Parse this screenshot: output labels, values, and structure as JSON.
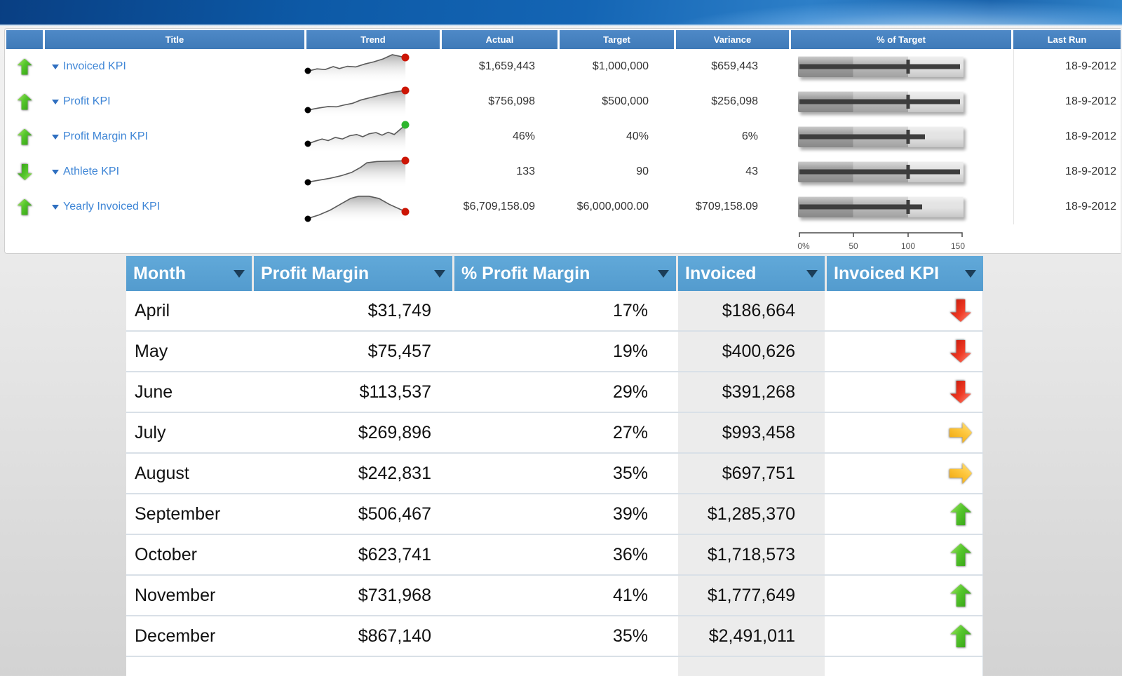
{
  "scorecard": {
    "columns": {
      "status": "",
      "title": "Title",
      "trend": "Trend",
      "actual": "Actual",
      "target": "Target",
      "variance": "Variance",
      "pct_of_target": "% of Target",
      "last_run": "Last Run"
    },
    "axis_labels": [
      "0%",
      "50",
      "100",
      "150"
    ],
    "rows": [
      {
        "status_arrow": "up-green",
        "title": "Invoiced KPI",
        "actual": "$1,659,443",
        "target": "$1,000,000",
        "variance": "$659,443",
        "last_run": "18-9-2012",
        "trend": {
          "end_color": "#cc1504",
          "points": [
            [
              0,
              64
            ],
            [
              9,
              57
            ],
            [
              17,
              59
            ],
            [
              25,
              50
            ],
            [
              31,
              56
            ],
            [
              39,
              49
            ],
            [
              47,
              51
            ],
            [
              56,
              42
            ],
            [
              65,
              35
            ],
            [
              74,
              26
            ],
            [
              83,
              13
            ],
            [
              89,
              17
            ],
            [
              96,
              22
            ]
          ]
        },
        "bullet": {
          "value_pct": 97,
          "target_pct": 66.6
        }
      },
      {
        "status_arrow": "up-green",
        "title": "Profit KPI",
        "actual": "$756,098",
        "target": "$500,000",
        "variance": "$256,098",
        "last_run": "18-9-2012",
        "trend": {
          "end_color": "#cc1504",
          "points": [
            [
              0,
              76
            ],
            [
              10,
              70
            ],
            [
              20,
              65
            ],
            [
              28,
              66
            ],
            [
              36,
              60
            ],
            [
              44,
              55
            ],
            [
              52,
              45
            ],
            [
              62,
              37
            ],
            [
              72,
              29
            ],
            [
              83,
              21
            ],
            [
              96,
              15
            ]
          ]
        },
        "bullet": {
          "value_pct": 97,
          "target_pct": 66.6
        }
      },
      {
        "status_arrow": "up-green",
        "title": "Profit Margin KPI",
        "actual": "46%",
        "target": "40%",
        "variance": "6%",
        "last_run": "18-9-2012",
        "trend": {
          "end_color": "#2db52d",
          "points": [
            [
              0,
              72
            ],
            [
              7,
              64
            ],
            [
              14,
              57
            ],
            [
              20,
              62
            ],
            [
              27,
              52
            ],
            [
              34,
              57
            ],
            [
              41,
              47
            ],
            [
              48,
              43
            ],
            [
              54,
              50
            ],
            [
              60,
              41
            ],
            [
              67,
              37
            ],
            [
              73,
              45
            ],
            [
              79,
              36
            ],
            [
              85,
              43
            ],
            [
              96,
              13
            ]
          ]
        },
        "bullet": {
          "value_pct": 76,
          "target_pct": 66.6
        }
      },
      {
        "status_arrow": "down-green",
        "title": "Athlete KPI",
        "actual": "133",
        "target": "90",
        "variance": "43",
        "last_run": "18-9-2012",
        "trend": {
          "end_color": "#cc1504",
          "points": [
            [
              0,
              82
            ],
            [
              11,
              76
            ],
            [
              22,
              70
            ],
            [
              33,
              62
            ],
            [
              43,
              52
            ],
            [
              52,
              36
            ],
            [
              58,
              22
            ],
            [
              68,
              18
            ],
            [
              80,
              17
            ],
            [
              96,
              16
            ]
          ]
        },
        "bullet": {
          "value_pct": 97,
          "target_pct": 66.6
        }
      },
      {
        "status_arrow": "up-green",
        "title": "Yearly Invoiced KPI",
        "actual": "$6,709,158.09",
        "target": "$6,000,000.00",
        "variance": "$709,158.09",
        "last_run": "18-9-2012",
        "trend": {
          "end_color": "#cc1504",
          "points": [
            [
              0,
              86
            ],
            [
              11,
              75
            ],
            [
              22,
              60
            ],
            [
              33,
              40
            ],
            [
              42,
              24
            ],
            [
              50,
              17
            ],
            [
              60,
              17
            ],
            [
              70,
              24
            ],
            [
              80,
              42
            ],
            [
              96,
              65
            ]
          ]
        },
        "bullet": {
          "value_pct": 74,
          "target_pct": 66.6
        }
      }
    ]
  },
  "table": {
    "headers": {
      "month": "Month",
      "profit_margin": "Profit Margin",
      "pct_profit_margin": "% Profit Margin",
      "invoiced": "Invoiced",
      "invoiced_kpi": "Invoiced KPI"
    },
    "rows": [
      {
        "month": "April",
        "profit_margin": "$31,749",
        "pct_profit_margin": "17%",
        "invoiced": "$186,664",
        "kpi_arrow": "down-red"
      },
      {
        "month": "May",
        "profit_margin": "$75,457",
        "pct_profit_margin": "19%",
        "invoiced": "$400,626",
        "kpi_arrow": "down-red"
      },
      {
        "month": "June",
        "profit_margin": "$113,537",
        "pct_profit_margin": "29%",
        "invoiced": "$391,268",
        "kpi_arrow": "down-red"
      },
      {
        "month": "July",
        "profit_margin": "$269,896",
        "pct_profit_margin": "27%",
        "invoiced": "$993,458",
        "kpi_arrow": "right-yellow"
      },
      {
        "month": "August",
        "profit_margin": "$242,831",
        "pct_profit_margin": "35%",
        "invoiced": "$697,751",
        "kpi_arrow": "right-yellow"
      },
      {
        "month": "September",
        "profit_margin": "$506,467",
        "pct_profit_margin": "39%",
        "invoiced": "$1,285,370",
        "kpi_arrow": "up-green"
      },
      {
        "month": "October",
        "profit_margin": "$623,741",
        "pct_profit_margin": "36%",
        "invoiced": "$1,718,573",
        "kpi_arrow": "up-green"
      },
      {
        "month": "November",
        "profit_margin": "$731,968",
        "pct_profit_margin": "41%",
        "invoiced": "$1,777,649",
        "kpi_arrow": "up-green"
      },
      {
        "month": "December",
        "profit_margin": "$867,140",
        "pct_profit_margin": "35%",
        "invoiced": "$2,491,011",
        "kpi_arrow": "up-green"
      }
    ]
  },
  "colors": {
    "scorecard_header_blue": "#447fbe",
    "table_header_blue": "#5ba2d2",
    "kpi_link_blue": "#3f86d6",
    "banner_blue": "#1465b4",
    "good_green": "#3aae18",
    "bad_red": "#e02718",
    "warn_yellow": "#f5b929",
    "invoiced_col_bg": "#ececec"
  }
}
